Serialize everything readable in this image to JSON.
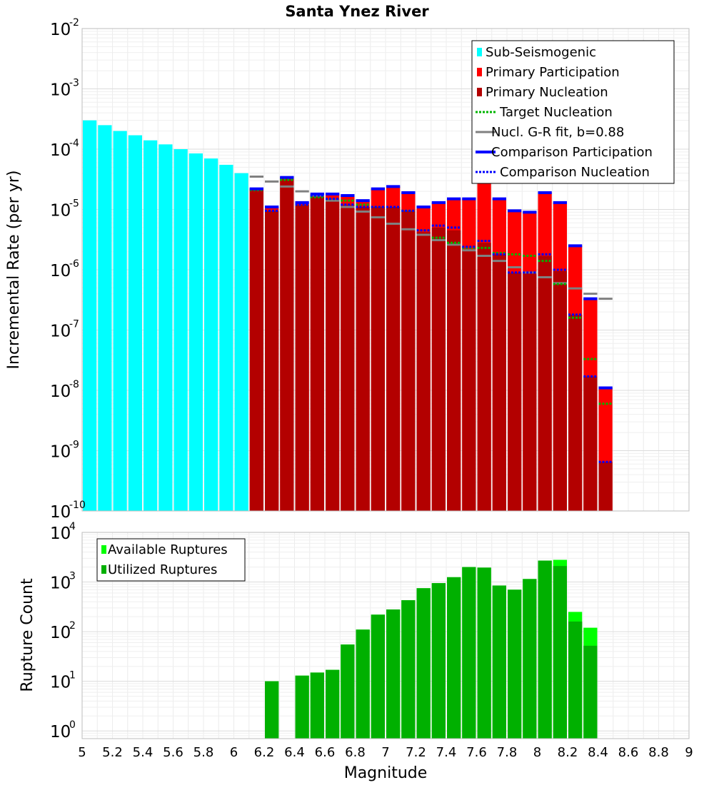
{
  "title": "Santa Ynez River",
  "chart_data": [
    {
      "type": "bar",
      "panel": "top",
      "ylabel": "Incremental Rate (per yr)",
      "yscale": "log",
      "ylim": [
        1e-10,
        0.01
      ],
      "xlim": [
        5,
        9
      ],
      "x": [
        5.05,
        5.15,
        5.25,
        5.35,
        5.45,
        5.55,
        5.65,
        5.75,
        5.85,
        5.95,
        6.05,
        6.15,
        6.25,
        6.35,
        6.45,
        6.55,
        6.65,
        6.75,
        6.85,
        6.95,
        7.05,
        7.15,
        7.25,
        7.35,
        7.45,
        7.55,
        7.65,
        7.75,
        7.85,
        7.95,
        8.05,
        8.15,
        8.25,
        8.35,
        8.45
      ],
      "series": [
        {
          "name": "Sub-Seismogenic",
          "color": "#00ffff",
          "values": [
            0.0003,
            0.00025,
            0.0002,
            0.00017,
            0.00014,
            0.00012,
            0.0001,
            8.5e-05,
            7e-05,
            5.5e-05,
            4e-05,
            null,
            null,
            null,
            null,
            null,
            null,
            null,
            null,
            null,
            null,
            null,
            null,
            null,
            null,
            null,
            null,
            null,
            null,
            null,
            null,
            null,
            null,
            null,
            null
          ]
        },
        {
          "name": "Primary Participation",
          "color": "#ff0000",
          "values": [
            null,
            null,
            null,
            null,
            null,
            null,
            null,
            null,
            null,
            null,
            null,
            2.2e-05,
            1.1e-05,
            3.4e-05,
            1.3e-05,
            1.8e-05,
            1.8e-05,
            1.7e-05,
            1.4e-05,
            2.2e-05,
            2.4e-05,
            1.9e-05,
            1.1e-05,
            1.3e-05,
            1.5e-05,
            1.5e-05,
            3.2e-05,
            1.5e-05,
            9.5e-06,
            9e-06,
            1.9e-05,
            1.3e-05,
            2.5e-06,
            3.3e-07,
            1.1e-08
          ]
        },
        {
          "name": "Primary Nucleation",
          "color": "#b30000",
          "values": [
            null,
            null,
            null,
            null,
            null,
            null,
            null,
            null,
            null,
            null,
            null,
            2.2e-05,
            9.5e-06,
            3.4e-05,
            1.2e-05,
            1.7e-05,
            1.5e-05,
            1.2e-05,
            1.1e-05,
            1.1e-05,
            1.1e-05,
            9.5e-06,
            4.2e-06,
            5e-06,
            4.5e-06,
            2.2e-06,
            2.8e-06,
            1.8e-06,
            9e-07,
            9e-07,
            1.7e-06,
            9.5e-07,
            1.8e-07,
            1.7e-08,
            6.5e-10
          ]
        },
        {
          "name": "Target Nucleation",
          "color": "#00b400",
          "values": [
            null,
            null,
            null,
            null,
            null,
            null,
            null,
            null,
            null,
            null,
            null,
            2.1e-05,
            9.5e-06,
            3.1e-05,
            1.2e-05,
            1.6e-05,
            1.5e-05,
            1.4e-05,
            1.2e-05,
            1.1e-05,
            1.1e-05,
            9.5e-06,
            4.5e-06,
            3.4e-06,
            2.8e-06,
            2.3e-06,
            2.3e-06,
            1.9e-06,
            1.8e-06,
            1.7e-06,
            1.4e-06,
            5.8e-07,
            1.6e-07,
            3.3e-08,
            6e-09
          ]
        },
        {
          "name": "Nucl. G-R fit, b=0.88",
          "color": "#808080",
          "values": [
            null,
            null,
            null,
            null,
            null,
            null,
            null,
            null,
            null,
            null,
            null,
            3.5e-05,
            2.9e-05,
            2.4e-05,
            2e-05,
            1.7e-05,
            1.4e-05,
            1.1e-05,
            9.2e-06,
            7.4e-06,
            5.8e-06,
            4.7e-06,
            3.8e-06,
            3.1e-06,
            2.6e-06,
            2.1e-06,
            1.7e-06,
            1.4e-06,
            1.1e-06,
            9e-07,
            7.5e-07,
            6e-07,
            4.9e-07,
            4e-07,
            3.3e-07
          ]
        },
        {
          "name": "Comparison Participation",
          "color": "#0000ff",
          "values": [
            null,
            null,
            null,
            null,
            null,
            null,
            null,
            null,
            null,
            null,
            null,
            2.2e-05,
            1.1e-05,
            3.4e-05,
            1.3e-05,
            1.8e-05,
            1.8e-05,
            1.7e-05,
            1.4e-05,
            2.2e-05,
            2.4e-05,
            1.9e-05,
            1.1e-05,
            1.3e-05,
            1.5e-05,
            1.5e-05,
            3.2e-05,
            1.5e-05,
            9.5e-06,
            9e-06,
            1.9e-05,
            1.3e-05,
            2.5e-06,
            3.3e-07,
            1.1e-08
          ]
        },
        {
          "name": "Comparison Nucleation",
          "color": "#0000ff",
          "values": [
            null,
            null,
            null,
            null,
            null,
            null,
            null,
            null,
            null,
            null,
            null,
            2.2e-05,
            9.5e-06,
            3.4e-05,
            1.2e-05,
            1.7e-05,
            1.5e-05,
            1.2e-05,
            1.1e-05,
            1.1e-05,
            1.1e-05,
            9.5e-06,
            4.5e-06,
            5.4e-06,
            5e-06,
            2.4e-06,
            3e-06,
            1.8e-06,
            9e-07,
            9e-07,
            1.8e-06,
            1e-06,
            1.8e-07,
            1.7e-08,
            6.5e-10
          ]
        }
      ],
      "legend": [
        "Sub-Seismogenic",
        "Primary Participation",
        "Primary Nucleation",
        "Target Nucleation",
        "Nucl. G-R fit, b=0.88",
        "Comparison Participation",
        "Comparison Nucleation"
      ],
      "legend_position": "top-right"
    },
    {
      "type": "bar",
      "panel": "bottom",
      "xlabel": "Magnitude",
      "ylabel": "Rupture Count",
      "yscale": "log",
      "ylim": [
        0.7,
        10000
      ],
      "xlim": [
        5,
        9
      ],
      "x": [
        6.25,
        6.35,
        6.45,
        6.55,
        6.65,
        6.75,
        6.85,
        6.95,
        7.05,
        7.15,
        7.25,
        7.35,
        7.45,
        7.55,
        7.65,
        7.75,
        7.85,
        7.95,
        8.05,
        8.15,
        8.25,
        8.35
      ],
      "series": [
        {
          "name": "Available Ruptures",
          "color": "#00ff00",
          "values": [
            10,
            null,
            13,
            15,
            17,
            55,
            110,
            220,
            280,
            430,
            750,
            950,
            1250,
            2000,
            1950,
            850,
            700,
            1150,
            2700,
            2800,
            250,
            120
          ]
        },
        {
          "name": "Utilized Ruptures",
          "color": "#00b000",
          "values": [
            10,
            null,
            13,
            15,
            17,
            55,
            110,
            220,
            280,
            430,
            750,
            950,
            1250,
            2000,
            1950,
            850,
            700,
            1150,
            2700,
            2100,
            160,
            52
          ]
        }
      ],
      "legend": [
        "Available Ruptures",
        "Utilized Ruptures"
      ],
      "legend_position": "top-left"
    }
  ],
  "x_ticks": [
    "5",
    "5.2",
    "5.4",
    "5.6",
    "5.8",
    "6",
    "6.2",
    "6.4",
    "6.6",
    "6.8",
    "7",
    "7.2",
    "7.4",
    "7.6",
    "7.8",
    "8",
    "8.2",
    "8.4",
    "8.6",
    "8.8",
    "9"
  ],
  "top_y_ticks": [
    {
      "base": "10",
      "exp": "-2"
    },
    {
      "base": "10",
      "exp": "-3"
    },
    {
      "base": "10",
      "exp": "-4"
    },
    {
      "base": "10",
      "exp": "-5"
    },
    {
      "base": "10",
      "exp": "-6"
    },
    {
      "base": "10",
      "exp": "-7"
    },
    {
      "base": "10",
      "exp": "-8"
    },
    {
      "base": "10",
      "exp": "-9"
    },
    {
      "base": "10",
      "exp": "-10"
    }
  ],
  "bottom_y_ticks": [
    {
      "base": "10",
      "exp": "4"
    },
    {
      "base": "10",
      "exp": "3"
    },
    {
      "base": "10",
      "exp": "2"
    },
    {
      "base": "10",
      "exp": "1"
    },
    {
      "base": "10",
      "exp": "0"
    }
  ]
}
